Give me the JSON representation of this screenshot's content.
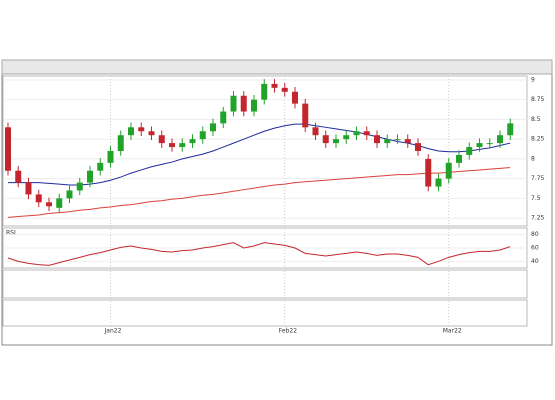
{
  "chart_data": [
    {
      "type": "candlestick",
      "categories": [
        null,
        null,
        null,
        null,
        null,
        null,
        null,
        null,
        null,
        null,
        "Jan22",
        null,
        null,
        null,
        null,
        null,
        null,
        null,
        null,
        null,
        null,
        null,
        null,
        null,
        null,
        null,
        null,
        "Feb22",
        null,
        null,
        null,
        null,
        null,
        null,
        null,
        null,
        null,
        null,
        null,
        null,
        null,
        null,
        null,
        "Mar22",
        null,
        null,
        null,
        null,
        null,
        null
      ],
      "open": [
        8.4,
        7.85,
        7.7,
        7.55,
        7.45,
        7.38,
        7.5,
        7.6,
        7.7,
        7.85,
        7.95,
        8.1,
        8.3,
        8.4,
        8.35,
        8.3,
        8.2,
        8.15,
        8.2,
        8.25,
        8.35,
        8.45,
        8.6,
        8.8,
        8.6,
        8.75,
        8.95,
        8.9,
        8.85,
        8.7,
        8.4,
        8.3,
        8.2,
        8.25,
        8.3,
        8.35,
        8.3,
        8.2,
        8.25,
        8.25,
        8.2,
        8.0,
        7.65,
        7.75,
        7.95,
        8.05,
        8.15,
        8.2,
        8.2,
        8.3
      ],
      "high": [
        8.46,
        7.91,
        7.76,
        7.61,
        7.51,
        7.56,
        7.66,
        7.76,
        7.91,
        8.01,
        8.16,
        8.36,
        8.46,
        8.46,
        8.41,
        8.36,
        8.26,
        8.26,
        8.31,
        8.41,
        8.51,
        8.66,
        8.86,
        8.86,
        8.81,
        9.01,
        9.01,
        8.96,
        8.91,
        8.76,
        8.46,
        8.36,
        8.31,
        8.36,
        8.41,
        8.41,
        8.36,
        8.31,
        8.31,
        8.31,
        8.26,
        8.06,
        7.81,
        8.01,
        8.11,
        8.21,
        8.26,
        8.26,
        8.36,
        8.51
      ],
      "low": [
        7.79,
        7.64,
        7.49,
        7.39,
        7.34,
        7.32,
        7.44,
        7.54,
        7.64,
        7.79,
        7.89,
        8.04,
        8.24,
        8.29,
        8.24,
        8.14,
        8.09,
        8.09,
        8.14,
        8.19,
        8.29,
        8.39,
        8.54,
        8.54,
        8.54,
        8.69,
        8.84,
        8.79,
        8.64,
        8.34,
        8.24,
        8.14,
        8.14,
        8.19,
        8.24,
        8.24,
        8.14,
        8.14,
        8.19,
        8.14,
        8.04,
        7.59,
        7.59,
        7.69,
        7.89,
        7.99,
        8.09,
        8.14,
        8.14,
        8.24
      ],
      "close": [
        7.85,
        7.7,
        7.55,
        7.45,
        7.4,
        7.5,
        7.6,
        7.7,
        7.85,
        7.95,
        8.1,
        8.3,
        8.4,
        8.35,
        8.3,
        8.2,
        8.15,
        8.2,
        8.25,
        8.35,
        8.45,
        8.6,
        8.8,
        8.6,
        8.75,
        8.95,
        8.9,
        8.85,
        8.7,
        8.4,
        8.3,
        8.2,
        8.25,
        8.3,
        8.35,
        8.3,
        8.2,
        8.25,
        8.25,
        8.2,
        8.1,
        7.65,
        7.75,
        7.95,
        8.05,
        8.15,
        8.2,
        8.2,
        8.3,
        8.45
      ],
      "up_color": "#21a32a",
      "down_color": "#c4262e",
      "ylim": [
        7.15,
        9.05
      ],
      "yticks": [
        7.25,
        7.5,
        7.75,
        8,
        8.25,
        8.5,
        8.75,
        9
      ],
      "series": [
        {
          "color": "#1f2a9c",
          "values": [
            7.7,
            7.7,
            7.7,
            7.7,
            7.69,
            7.68,
            7.67,
            7.67,
            7.68,
            7.7,
            7.73,
            7.77,
            7.82,
            7.86,
            7.9,
            7.93,
            7.96,
            8.0,
            8.03,
            8.06,
            8.1,
            8.15,
            8.2,
            8.25,
            8.3,
            8.35,
            8.39,
            8.42,
            8.44,
            8.44,
            8.42,
            8.4,
            8.38,
            8.36,
            8.34,
            8.31,
            8.28,
            8.25,
            8.22,
            8.2,
            8.17,
            8.13,
            8.1,
            8.09,
            8.09,
            8.1,
            8.12,
            8.14,
            8.17,
            8.2
          ]
        },
        {
          "color": "#d9413a",
          "values": [
            7.26,
            7.27,
            7.28,
            7.29,
            7.31,
            7.32,
            7.33,
            7.35,
            7.36,
            7.38,
            7.39,
            7.41,
            7.42,
            7.44,
            7.46,
            7.47,
            7.49,
            7.5,
            7.52,
            7.54,
            7.55,
            7.57,
            7.59,
            7.61,
            7.63,
            7.65,
            7.67,
            7.68,
            7.7,
            7.71,
            7.72,
            7.73,
            7.74,
            7.75,
            7.76,
            7.77,
            7.78,
            7.79,
            7.8,
            7.8,
            7.81,
            7.82,
            7.82,
            7.83,
            7.84,
            7.85,
            7.86,
            7.87,
            7.88,
            7.89
          ]
        }
      ]
    },
    {
      "type": "line",
      "title": "RSI",
      "color": "#c4262e",
      "values": [
        45,
        40,
        37,
        35,
        34,
        38,
        42,
        46,
        50,
        53,
        57,
        61,
        63,
        60,
        58,
        55,
        54,
        56,
        57,
        60,
        62,
        65,
        68,
        60,
        63,
        68,
        66,
        64,
        60,
        52,
        50,
        48,
        50,
        52,
        54,
        52,
        49,
        51,
        51,
        49,
        46,
        35,
        40,
        46,
        50,
        53,
        55,
        55,
        57,
        62
      ],
      "ylim": [
        30,
        90
      ],
      "yticks": [
        40,
        60,
        80
      ]
    }
  ]
}
